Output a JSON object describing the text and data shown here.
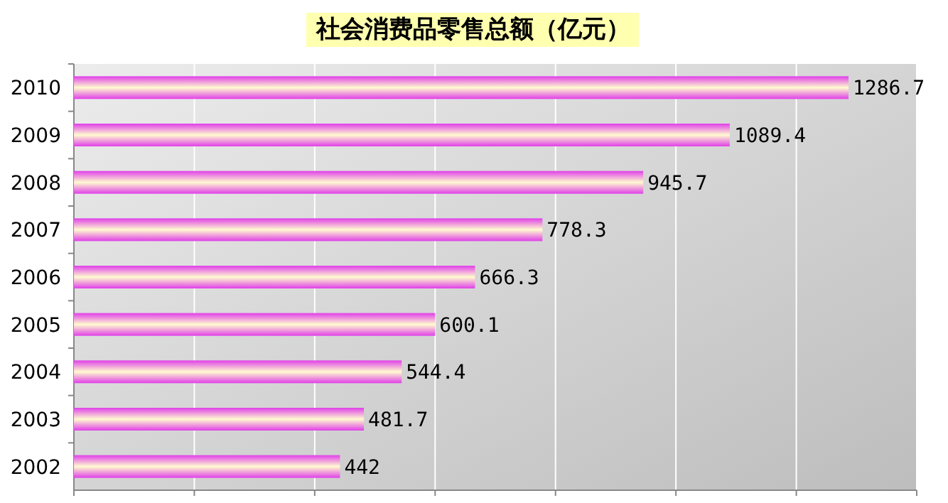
{
  "chart_data": {
    "type": "bar",
    "orientation": "horizontal",
    "title": "社会消费品零售总额（亿元）",
    "categories": [
      "2010",
      "2009",
      "2008",
      "2007",
      "2006",
      "2005",
      "2004",
      "2003",
      "2002"
    ],
    "values": [
      1286.7,
      1089.4,
      945.7,
      778.3,
      666.3,
      600.1,
      544.4,
      481.7,
      442
    ],
    "color": "#e040e8",
    "data_labels": true,
    "grid": "x",
    "tick_labels": "y",
    "xlim": [
      0,
      1400
    ],
    "xticks": [
      {
        "value": 0,
        "label": null
      },
      {
        "value": 200,
        "label": null
      },
      {
        "value": 400,
        "label": null
      },
      {
        "value": 600,
        "label": null
      },
      {
        "value": 800,
        "label": null
      },
      {
        "value": 1000,
        "label": null
      },
      {
        "value": 1200,
        "label": null
      },
      {
        "value": 1400,
        "label": null
      }
    ]
  }
}
